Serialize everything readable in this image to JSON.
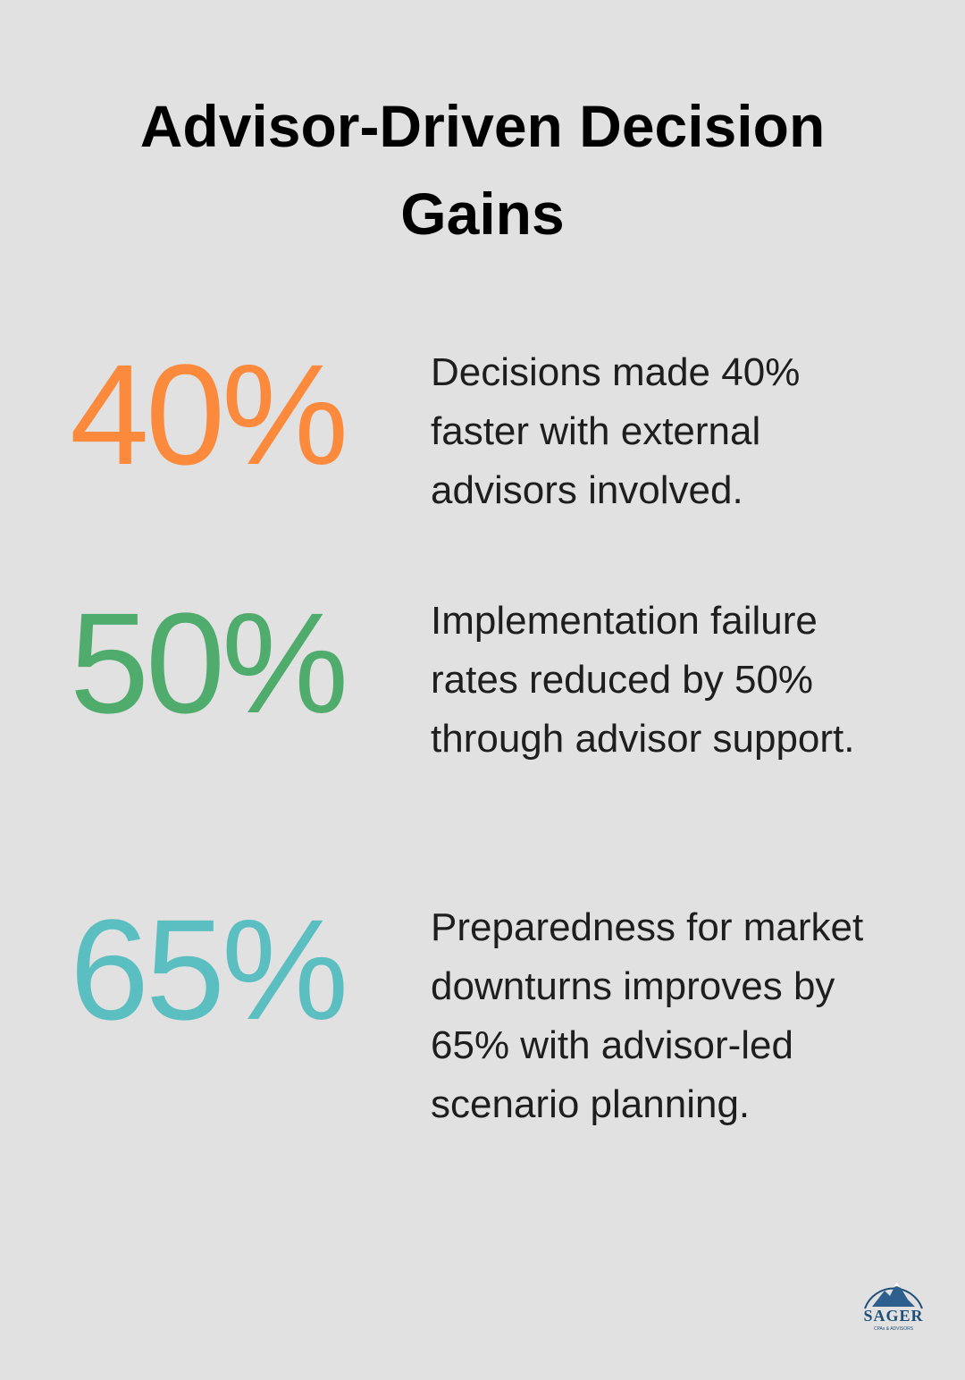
{
  "header": {
    "title": "Advisor-Driven Decision Gains"
  },
  "items": [
    {
      "stat": "40%",
      "color": "#fb8a3c",
      "text": "Decisions made 40% faster with external advisors involved."
    },
    {
      "stat": "50%",
      "color": "#4fac6c",
      "text": "Implementation failure rates reduced by 50% through advisor support."
    },
    {
      "stat": "65%",
      "color": "#5bbfc1",
      "text": "Preparedness for market downturns improves by 65% with advisor-led scenario planning."
    }
  ],
  "logo": {
    "name": "SAGER",
    "tagline": "CPAs & ADVISORS"
  }
}
